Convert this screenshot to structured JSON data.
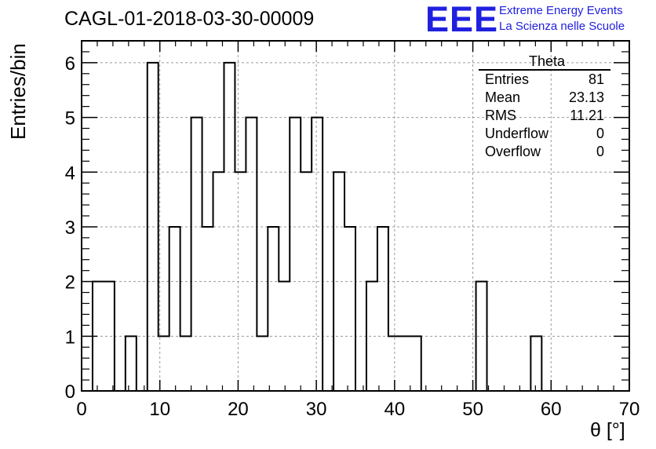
{
  "title": "CAGL-01-2018-03-30-00009",
  "logo": {
    "mark": "EEE",
    "line1": "Extreme Energy Events",
    "line2": "La Scienza nelle Scuole",
    "color": "#2020e0"
  },
  "stats": {
    "header": "Theta",
    "rows": [
      {
        "label": "Entries",
        "value": "81"
      },
      {
        "label": "Mean",
        "value": "23.13"
      },
      {
        "label": "RMS",
        "value": "11.21"
      },
      {
        "label": "Underflow",
        "value": "0"
      },
      {
        "label": "Overflow",
        "value": "0"
      }
    ]
  },
  "chart_data": {
    "type": "bar",
    "style": "histogram-step",
    "xlabel": "θ [°]",
    "ylabel": "Entries/bin",
    "xlim": [
      0,
      70
    ],
    "ylim": [
      0,
      6.4
    ],
    "grid": true,
    "bin_width": 1.4,
    "bin_start": 1.4,
    "values": [
      2,
      2,
      0,
      1,
      0,
      6,
      1,
      3,
      1,
      5,
      3,
      4,
      6,
      4,
      5,
      1,
      3,
      2,
      5,
      4,
      5,
      0,
      4,
      3,
      0,
      2,
      3,
      1,
      1,
      1,
      0,
      0,
      0,
      0,
      0,
      2,
      0,
      0,
      0,
      0,
      1
    ],
    "x_ticks": [
      "0",
      "10",
      "20",
      "30",
      "40",
      "50",
      "60",
      "70"
    ],
    "y_ticks": [
      "0",
      "1",
      "2",
      "3",
      "4",
      "5",
      "6"
    ]
  }
}
